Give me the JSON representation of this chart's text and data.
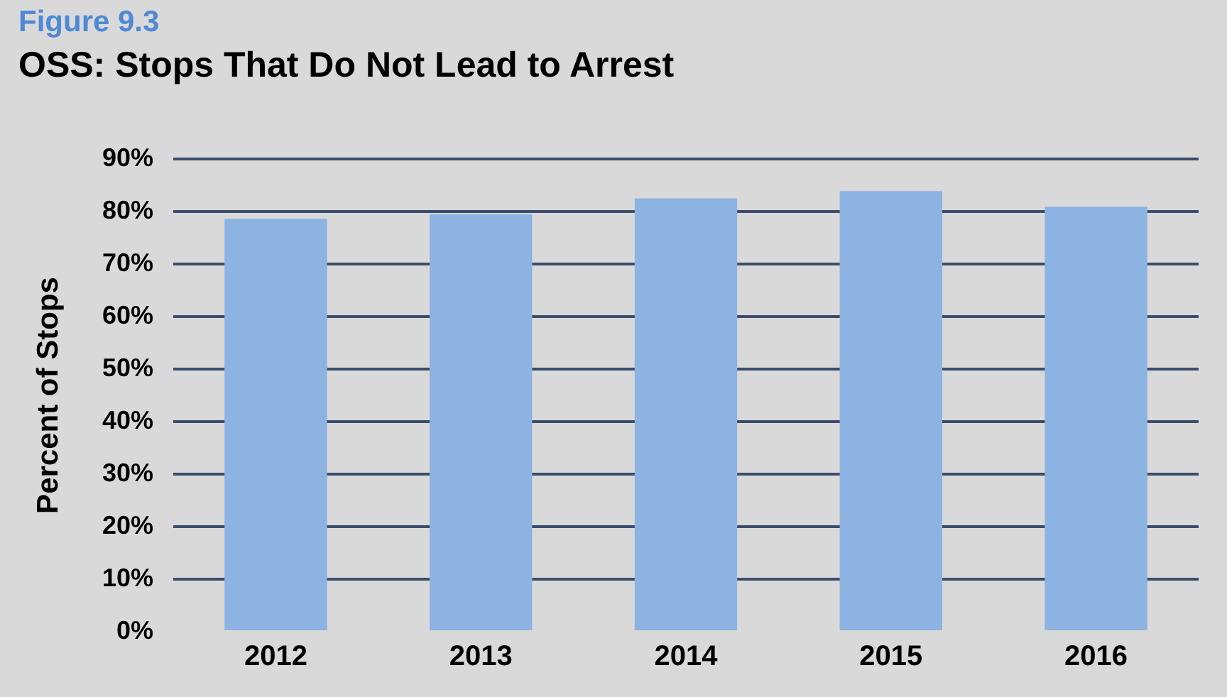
{
  "chart_data": {
    "type": "bar",
    "title": "OSS: Stops That Do Not Lead to Arrest",
    "annotations": [
      "Figure 9.3"
    ],
    "ylabel": "Percent of Stops",
    "categories": [
      "2012",
      "2013",
      "2014",
      "2015",
      "2016"
    ],
    "values": [
      78.6,
      79.5,
      82.5,
      83.9,
      80.9
    ],
    "color": "#8db3e2",
    "ylim": [
      0,
      90
    ],
    "yticks": [
      {
        "value": 0,
        "label": "0%"
      },
      {
        "value": 10,
        "label": "10%"
      },
      {
        "value": 20,
        "label": "20%"
      },
      {
        "value": 30,
        "label": "30%"
      },
      {
        "value": 40,
        "label": "40%"
      },
      {
        "value": 50,
        "label": "50%"
      },
      {
        "value": 60,
        "label": "60%"
      },
      {
        "value": 70,
        "label": "70%"
      },
      {
        "value": 80,
        "label": "80%"
      },
      {
        "value": 90,
        "label": "90%"
      }
    ],
    "grid": "y"
  }
}
